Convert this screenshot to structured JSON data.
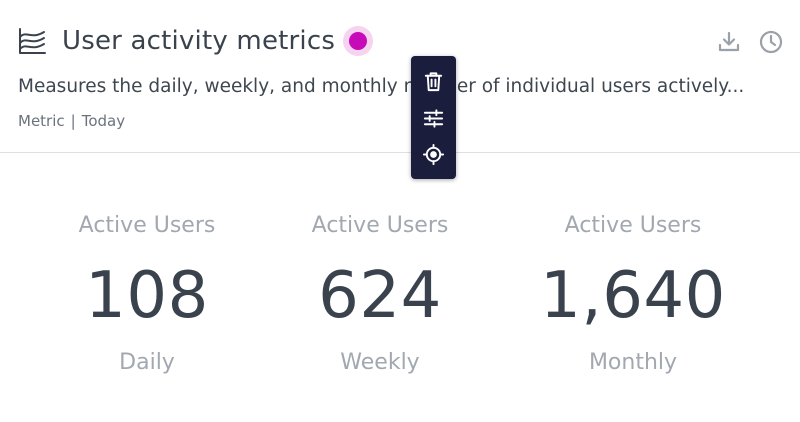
{
  "header": {
    "title": "User activity metrics",
    "status_color": "#c70ab7",
    "description": "Measures the daily, weekly, and monthly number of individual users actively...",
    "meta_type": "Metric",
    "meta_separator": "|",
    "meta_period": "Today",
    "icons": [
      "area-chart-icon",
      "download-icon",
      "clock-icon"
    ]
  },
  "toolbar": {
    "items": [
      "trash-icon",
      "sliders-icon",
      "crosshair-icon"
    ]
  },
  "metrics": [
    {
      "label": "Active Users",
      "value": "108",
      "period": "Daily"
    },
    {
      "label": "Active Users",
      "value": "624",
      "period": "Weekly"
    },
    {
      "label": "Active Users",
      "value": "1,640",
      "period": "Monthly"
    }
  ]
}
